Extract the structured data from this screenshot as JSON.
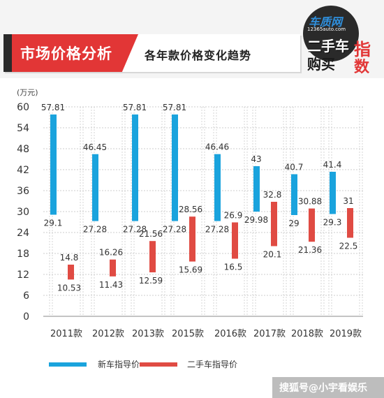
{
  "header": {
    "title": "市场价格分析",
    "subtitle": "各年款价格变化趋势"
  },
  "logo": {
    "brand": "车质网",
    "site": "12365auto.com",
    "line1": "二手车",
    "line2": "购买",
    "red1": "指",
    "red2": "数"
  },
  "watermark": "搜狐号@小宇看娱乐",
  "colors": {
    "new_car": "#1aa3dd",
    "used_car": "#e04b43",
    "grid": "#cccccc",
    "title_red": "#e23636"
  },
  "chart_data": {
    "type": "range-bar",
    "ylabel": "(万元)",
    "ylim": [
      0,
      60
    ],
    "yticks": [
      0,
      6,
      12,
      18,
      24,
      30,
      36,
      42,
      48,
      54,
      60
    ],
    "categories": [
      "2011款",
      "2012款",
      "2013款",
      "2015款",
      "2016款",
      "2017款",
      "2018款",
      "2019款"
    ],
    "series": [
      {
        "name": "新车指导价",
        "color": "#1aa3dd",
        "high": [
          57.81,
          46.45,
          57.81,
          57.81,
          46.46,
          43,
          40.7,
          41.4
        ],
        "low": [
          29.1,
          27.28,
          27.28,
          27.28,
          27.28,
          29.98,
          29,
          29.3
        ],
        "high_labels": [
          "57.81",
          "46.45",
          "57.81",
          "57.81",
          "46.46",
          "43",
          "40.7",
          "41.4"
        ],
        "low_labels": [
          "29.1",
          "27.28",
          "27.28",
          "27.28",
          "27.28",
          "29.98",
          "29",
          "29.3"
        ]
      },
      {
        "name": "二手车指导价",
        "color": "#e04b43",
        "high": [
          14.8,
          16.26,
          21.56,
          28.56,
          26.9,
          32.8,
          30.88,
          31
        ],
        "low": [
          10.53,
          11.43,
          12.59,
          15.69,
          16.5,
          20.1,
          21.36,
          22.5
        ],
        "high_labels": [
          "14.8",
          "16.26",
          "21.56",
          "28.56",
          "26.9",
          "32.8",
          "30.88",
          "31"
        ],
        "low_labels": [
          "10.53",
          "11.43",
          "12.59",
          "15.69",
          "16.5",
          "20.1",
          "21.36",
          "22.5"
        ]
      }
    ],
    "grid": true,
    "legend": "bottom-left"
  }
}
